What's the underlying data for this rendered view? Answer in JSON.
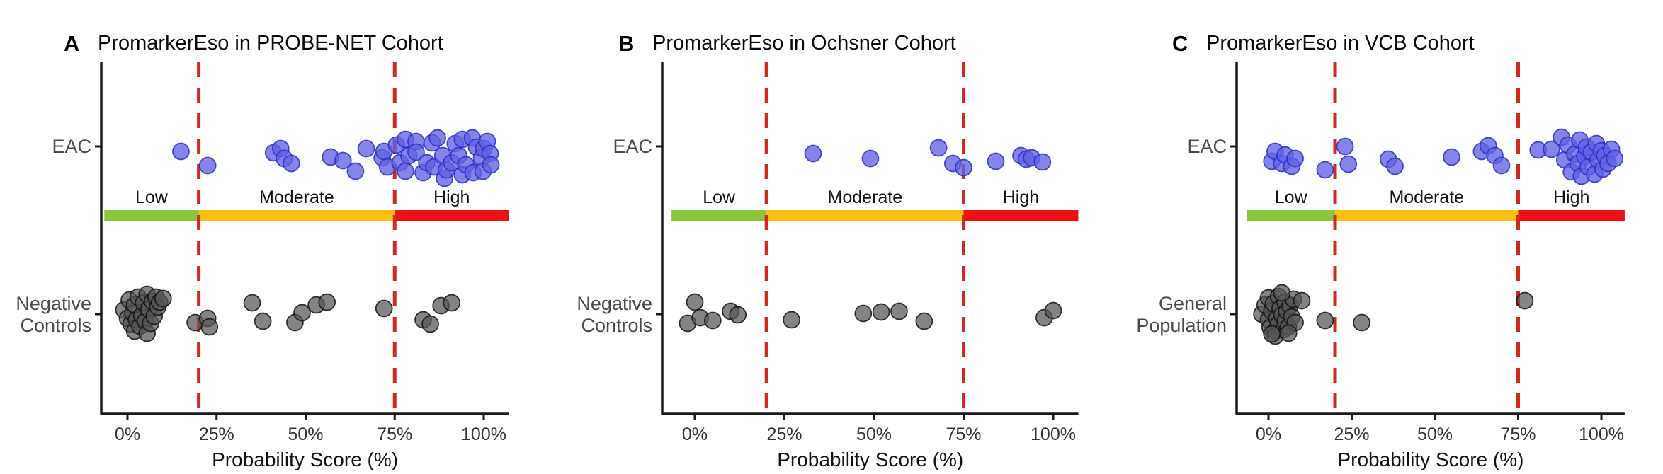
{
  "figure": {
    "background": "#ffffff",
    "x_axis_label": "Probability Score (%)",
    "x_tick_labels": [
      "0%",
      "25%",
      "50%",
      "75%",
      "100%"
    ],
    "x_tick_values": [
      0,
      25,
      50,
      75,
      100
    ],
    "threshold_values_pct": [
      20,
      75
    ],
    "zones": [
      {
        "label": "Low",
        "color": "#8cc63e",
        "from": -6.5,
        "to": 20
      },
      {
        "label": "Moderate",
        "color": "#fcbf12",
        "from": 20,
        "to": 75
      },
      {
        "label": "High",
        "color": "#ee1111",
        "from": 75,
        "to": 107
      }
    ],
    "colors": {
      "threshold_line": "#d3281e",
      "axis": "#1a1a1a",
      "tick_label": "#333333",
      "row_label": "#4a4a4a",
      "title": "#000000",
      "eac_fill": "#6262e3",
      "eac_stroke": "#2a2ac9",
      "control_fill": "#545454",
      "control_stroke": "#111111"
    }
  },
  "chart_data": [
    {
      "type": "scatter",
      "panel": "A",
      "title": "PromarkerEso in PROBE-NET Cohort",
      "xlabel": "Probability Score (%)",
      "xlim": [
        -8,
        110
      ],
      "x_ticks_pct": [
        0,
        25,
        50,
        75,
        100
      ],
      "thresholds_pct": [
        20,
        75
      ],
      "groups": [
        {
          "name": "EAC",
          "label_lines": [
            "EAC"
          ],
          "role": "cases",
          "points": [
            [
              15,
              -8
            ],
            [
              22.5,
              12
            ],
            [
              41,
              -6
            ],
            [
              43,
              -12
            ],
            [
              44,
              2
            ],
            [
              46,
              9
            ],
            [
              57,
              0
            ],
            [
              60.5,
              5
            ],
            [
              64,
              20
            ],
            [
              67,
              -12
            ],
            [
              71.5,
              1
            ],
            [
              72,
              -8
            ],
            [
              73,
              14
            ],
            [
              75.5,
              -17
            ],
            [
              76.5,
              8
            ],
            [
              78,
              -25
            ],
            [
              78,
              20
            ],
            [
              79,
              -2
            ],
            [
              81,
              -22
            ],
            [
              81,
              -7
            ],
            [
              83,
              22
            ],
            [
              84,
              8
            ],
            [
              85.5,
              -20
            ],
            [
              86,
              14
            ],
            [
              87,
              -27
            ],
            [
              88.5,
              -2
            ],
            [
              89,
              30
            ],
            [
              89.5,
              18
            ],
            [
              91,
              8
            ],
            [
              92,
              -19
            ],
            [
              93,
              -2
            ],
            [
              94,
              -25
            ],
            [
              94,
              25
            ],
            [
              95,
              11
            ],
            [
              96.8,
              -27
            ],
            [
              97,
              22
            ],
            [
              98,
              -14
            ],
            [
              99.4,
              1
            ],
            [
              99.8,
              20
            ],
            [
              100,
              -12
            ],
            [
              101,
              -22
            ],
            [
              101.8,
              -5
            ],
            [
              102,
              11
            ]
          ]
        },
        {
          "name": "Negative Controls",
          "label_lines": [
            "Negative",
            "Controls"
          ],
          "role": "controls",
          "points": [
            [
              -1,
              -6
            ],
            [
              0,
              6
            ],
            [
              0.5,
              -20
            ],
            [
              1,
              14
            ],
            [
              1.5,
              -1
            ],
            [
              2,
              24
            ],
            [
              2,
              -13
            ],
            [
              2.5,
              8
            ],
            [
              3,
              -24
            ],
            [
              3.5,
              17
            ],
            [
              4,
              2
            ],
            [
              4.5,
              -16
            ],
            [
              5,
              10
            ],
            [
              5.5,
              -28
            ],
            [
              5.5,
              27
            ],
            [
              6,
              -7
            ],
            [
              6.5,
              13
            ],
            [
              7,
              -18
            ],
            [
              7.5,
              3
            ],
            [
              8,
              -24
            ],
            [
              8.5,
              -10
            ],
            [
              9,
              -17
            ],
            [
              10,
              -22
            ],
            [
              19,
              12
            ],
            [
              22.5,
              6
            ],
            [
              23,
              18
            ],
            [
              35,
              -16
            ],
            [
              38,
              10
            ],
            [
              47,
              12
            ],
            [
              49,
              -2
            ],
            [
              53,
              -13
            ],
            [
              56,
              -17
            ],
            [
              72,
              -8
            ],
            [
              83,
              8
            ],
            [
              85,
              14
            ],
            [
              88,
              -12
            ],
            [
              91,
              -16
            ]
          ]
        }
      ]
    },
    {
      "type": "scatter",
      "panel": "B",
      "title": "PromarkerEso in Ochsner Cohort",
      "xlabel": "Probability Score (%)",
      "xlim": [
        -8,
        110
      ],
      "x_ticks_pct": [
        0,
        25,
        50,
        75,
        100
      ],
      "thresholds_pct": [
        20,
        75
      ],
      "groups": [
        {
          "name": "EAC",
          "label_lines": [
            "EAC"
          ],
          "role": "cases",
          "points": [
            [
              33,
              -5
            ],
            [
              49,
              2
            ],
            [
              68,
              -13
            ],
            [
              72,
              9
            ],
            [
              75,
              15
            ],
            [
              84,
              6
            ],
            [
              91,
              -2
            ],
            [
              92.5,
              3
            ],
            [
              94,
              1
            ],
            [
              97,
              7
            ]
          ]
        },
        {
          "name": "Negative Controls",
          "label_lines": [
            "Negative",
            "Controls"
          ],
          "role": "controls",
          "points": [
            [
              -2,
              13
            ],
            [
              0,
              -17
            ],
            [
              1.5,
              5
            ],
            [
              5,
              9
            ],
            [
              10,
              -4
            ],
            [
              12,
              1
            ],
            [
              27,
              8
            ],
            [
              47,
              -1
            ],
            [
              52,
              -3
            ],
            [
              57,
              -4
            ],
            [
              64,
              10
            ],
            [
              97.5,
              5
            ],
            [
              100,
              -5
            ]
          ]
        }
      ]
    },
    {
      "type": "scatter",
      "panel": "C",
      "title": "PromarkerEso in VCB Cohort",
      "xlabel": "Probability Score (%)",
      "xlim": [
        -8,
        110
      ],
      "x_ticks_pct": [
        0,
        25,
        50,
        75,
        100
      ],
      "thresholds_pct": [
        20,
        75
      ],
      "groups": [
        {
          "name": "EAC",
          "label_lines": [
            "EAC"
          ],
          "role": "cases",
          "points": [
            [
              1,
              6
            ],
            [
              2,
              -8
            ],
            [
              4,
              9
            ],
            [
              5,
              -3
            ],
            [
              7,
              13
            ],
            [
              8,
              2
            ],
            [
              17,
              18
            ],
            [
              23,
              -15
            ],
            [
              24,
              10
            ],
            [
              36,
              3
            ],
            [
              38,
              13
            ],
            [
              55,
              0
            ],
            [
              64,
              -8
            ],
            [
              66,
              -16
            ],
            [
              68,
              -2
            ],
            [
              70,
              12
            ],
            [
              81,
              -10
            ],
            [
              85,
              -11
            ],
            [
              88,
              -28
            ],
            [
              89,
              4
            ],
            [
              90,
              -17
            ],
            [
              91,
              21
            ],
            [
              92,
              -4
            ],
            [
              93,
              9
            ],
            [
              93.5,
              -24
            ],
            [
              94,
              27
            ],
            [
              95,
              -1
            ],
            [
              95.5,
              -14
            ],
            [
              96,
              14
            ],
            [
              97,
              -7
            ],
            [
              98,
              24
            ],
            [
              98.5,
              -19
            ],
            [
              99,
              4
            ],
            [
              100,
              -9
            ],
            [
              100.5,
              17
            ],
            [
              101,
              -2
            ],
            [
              102,
              9
            ],
            [
              103,
              -11
            ],
            [
              104,
              2
            ]
          ]
        },
        {
          "name": "General Population",
          "label_lines": [
            "General",
            "Population"
          ],
          "role": "controls",
          "points": [
            [
              -2,
              0
            ],
            [
              -1,
              -13
            ],
            [
              0,
              8
            ],
            [
              0,
              -23
            ],
            [
              0.5,
              19
            ],
            [
              1,
              -4
            ],
            [
              1.5,
              -15
            ],
            [
              2,
              24
            ],
            [
              2.5,
              6
            ],
            [
              3,
              -25
            ],
            [
              3,
              14
            ],
            [
              3.5,
              -8
            ],
            [
              4,
              1
            ],
            [
              4.5,
              22
            ],
            [
              5,
              -17
            ],
            [
              5,
              10
            ],
            [
              5.5,
              -4
            ],
            [
              6,
              18
            ],
            [
              6.5,
              -12
            ],
            [
              7,
              4
            ],
            [
              7.5,
              -21
            ],
            [
              8,
              12
            ],
            [
              2,
              31
            ],
            [
              4,
              -30
            ],
            [
              1,
              28
            ],
            [
              6,
              27
            ],
            [
              10,
              -19
            ],
            [
              17,
              9
            ],
            [
              28,
              12
            ],
            [
              77,
              -19
            ]
          ]
        }
      ]
    }
  ]
}
